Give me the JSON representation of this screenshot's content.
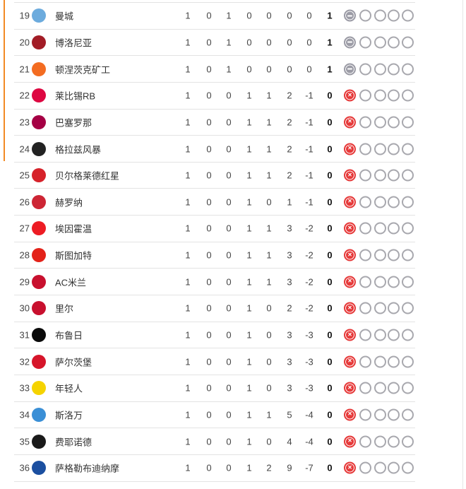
{
  "colors": {
    "qualification_bar": "#f28a24",
    "loss": "#e63a3a",
    "draw": "#9c9ca6"
  },
  "rows": [
    {
      "rank": "19",
      "team": "曼城",
      "badge": "man-city",
      "badge_color": "#6cabdd",
      "p": "1",
      "w": "0",
      "d": "1",
      "l": "0",
      "gf": "0",
      "ga": "0",
      "gd": "0",
      "pts": "1",
      "form": [
        "draw",
        "empty",
        "empty",
        "empty",
        "empty"
      ]
    },
    {
      "rank": "20",
      "team": "博洛尼亚",
      "badge": "bologna",
      "badge_color": "#a21c26",
      "p": "1",
      "w": "0",
      "d": "1",
      "l": "0",
      "gf": "0",
      "ga": "0",
      "gd": "0",
      "pts": "1",
      "form": [
        "draw",
        "empty",
        "empty",
        "empty",
        "empty"
      ]
    },
    {
      "rank": "21",
      "team": "顿涅茨克矿工",
      "badge": "shakhtar",
      "badge_color": "#f36c21",
      "p": "1",
      "w": "0",
      "d": "1",
      "l": "0",
      "gf": "0",
      "ga": "0",
      "gd": "0",
      "pts": "1",
      "form": [
        "draw",
        "empty",
        "empty",
        "empty",
        "empty"
      ]
    },
    {
      "rank": "22",
      "team": "莱比锡RB",
      "badge": "leipzig",
      "badge_color": "#dd0741",
      "p": "1",
      "w": "0",
      "d": "0",
      "l": "1",
      "gf": "1",
      "ga": "2",
      "gd": "-1",
      "pts": "0",
      "form": [
        "loss",
        "empty",
        "empty",
        "empty",
        "empty"
      ]
    },
    {
      "rank": "23",
      "team": "巴塞罗那",
      "badge": "barcelona",
      "badge_color": "#a50044",
      "p": "1",
      "w": "0",
      "d": "0",
      "l": "1",
      "gf": "1",
      "ga": "2",
      "gd": "-1",
      "pts": "0",
      "form": [
        "loss",
        "empty",
        "empty",
        "empty",
        "empty"
      ]
    },
    {
      "rank": "24",
      "team": "格拉兹风暴",
      "badge": "sturm-graz",
      "badge_color": "#222222",
      "p": "1",
      "w": "0",
      "d": "0",
      "l": "1",
      "gf": "1",
      "ga": "2",
      "gd": "-1",
      "pts": "0",
      "form": [
        "loss",
        "empty",
        "empty",
        "empty",
        "empty"
      ]
    },
    {
      "rank": "25",
      "team": "贝尔格莱德红星",
      "badge": "red-star",
      "badge_color": "#d6222a",
      "p": "1",
      "w": "0",
      "d": "0",
      "l": "1",
      "gf": "1",
      "ga": "2",
      "gd": "-1",
      "pts": "0",
      "form": [
        "loss",
        "empty",
        "empty",
        "empty",
        "empty"
      ]
    },
    {
      "rank": "26",
      "team": "赫罗纳",
      "badge": "girona",
      "badge_color": "#cd2534",
      "p": "1",
      "w": "0",
      "d": "0",
      "l": "1",
      "gf": "0",
      "ga": "1",
      "gd": "-1",
      "pts": "0",
      "form": [
        "loss",
        "empty",
        "empty",
        "empty",
        "empty"
      ]
    },
    {
      "rank": "27",
      "team": "埃因霍温",
      "badge": "psv",
      "badge_color": "#ed1c24",
      "p": "1",
      "w": "0",
      "d": "0",
      "l": "1",
      "gf": "1",
      "ga": "3",
      "gd": "-2",
      "pts": "0",
      "form": [
        "loss",
        "empty",
        "empty",
        "empty",
        "empty"
      ]
    },
    {
      "rank": "28",
      "team": "斯图加特",
      "badge": "stuttgart",
      "badge_color": "#e32219",
      "p": "1",
      "w": "0",
      "d": "0",
      "l": "1",
      "gf": "1",
      "ga": "3",
      "gd": "-2",
      "pts": "0",
      "form": [
        "loss",
        "empty",
        "empty",
        "empty",
        "empty"
      ]
    },
    {
      "rank": "29",
      "team": "AC米兰",
      "badge": "ac-milan",
      "badge_color": "#c8102e",
      "p": "1",
      "w": "0",
      "d": "0",
      "l": "1",
      "gf": "1",
      "ga": "3",
      "gd": "-2",
      "pts": "0",
      "form": [
        "loss",
        "empty",
        "empty",
        "empty",
        "empty"
      ]
    },
    {
      "rank": "30",
      "team": "里尔",
      "badge": "lille",
      "badge_color": "#c8102e",
      "p": "1",
      "w": "0",
      "d": "0",
      "l": "1",
      "gf": "0",
      "ga": "2",
      "gd": "-2",
      "pts": "0",
      "form": [
        "loss",
        "empty",
        "empty",
        "empty",
        "empty"
      ]
    },
    {
      "rank": "31",
      "team": "布鲁日",
      "badge": "club-brugge",
      "badge_color": "#0a0a0a",
      "p": "1",
      "w": "0",
      "d": "0",
      "l": "1",
      "gf": "0",
      "ga": "3",
      "gd": "-3",
      "pts": "0",
      "form": [
        "loss",
        "empty",
        "empty",
        "empty",
        "empty"
      ]
    },
    {
      "rank": "32",
      "team": "萨尔茨堡",
      "badge": "salzburg",
      "badge_color": "#d6152a",
      "p": "1",
      "w": "0",
      "d": "0",
      "l": "1",
      "gf": "0",
      "ga": "3",
      "gd": "-3",
      "pts": "0",
      "form": [
        "loss",
        "empty",
        "empty",
        "empty",
        "empty"
      ]
    },
    {
      "rank": "33",
      "team": "年轻人",
      "badge": "young-boys",
      "badge_color": "#f5d300",
      "p": "1",
      "w": "0",
      "d": "0",
      "l": "1",
      "gf": "0",
      "ga": "3",
      "gd": "-3",
      "pts": "0",
      "form": [
        "loss",
        "empty",
        "empty",
        "empty",
        "empty"
      ]
    },
    {
      "rank": "34",
      "team": "斯洛万",
      "badge": "slovan",
      "badge_color": "#3a8fd6",
      "p": "1",
      "w": "0",
      "d": "0",
      "l": "1",
      "gf": "1",
      "ga": "5",
      "gd": "-4",
      "pts": "0",
      "form": [
        "loss",
        "empty",
        "empty",
        "empty",
        "empty"
      ]
    },
    {
      "rank": "35",
      "team": "费耶诺德",
      "badge": "feyenoord",
      "badge_color": "#1a1a1a",
      "p": "1",
      "w": "0",
      "d": "0",
      "l": "1",
      "gf": "0",
      "ga": "4",
      "gd": "-4",
      "pts": "0",
      "form": [
        "loss",
        "empty",
        "empty",
        "empty",
        "empty"
      ]
    },
    {
      "rank": "36",
      "team": "萨格勒布迪纳摩",
      "badge": "dinamo-zagreb",
      "badge_color": "#1b4fa0",
      "p": "1",
      "w": "0",
      "d": "0",
      "l": "1",
      "gf": "2",
      "ga": "9",
      "gd": "-7",
      "pts": "0",
      "form": [
        "loss",
        "empty",
        "empty",
        "empty",
        "empty"
      ]
    }
  ]
}
